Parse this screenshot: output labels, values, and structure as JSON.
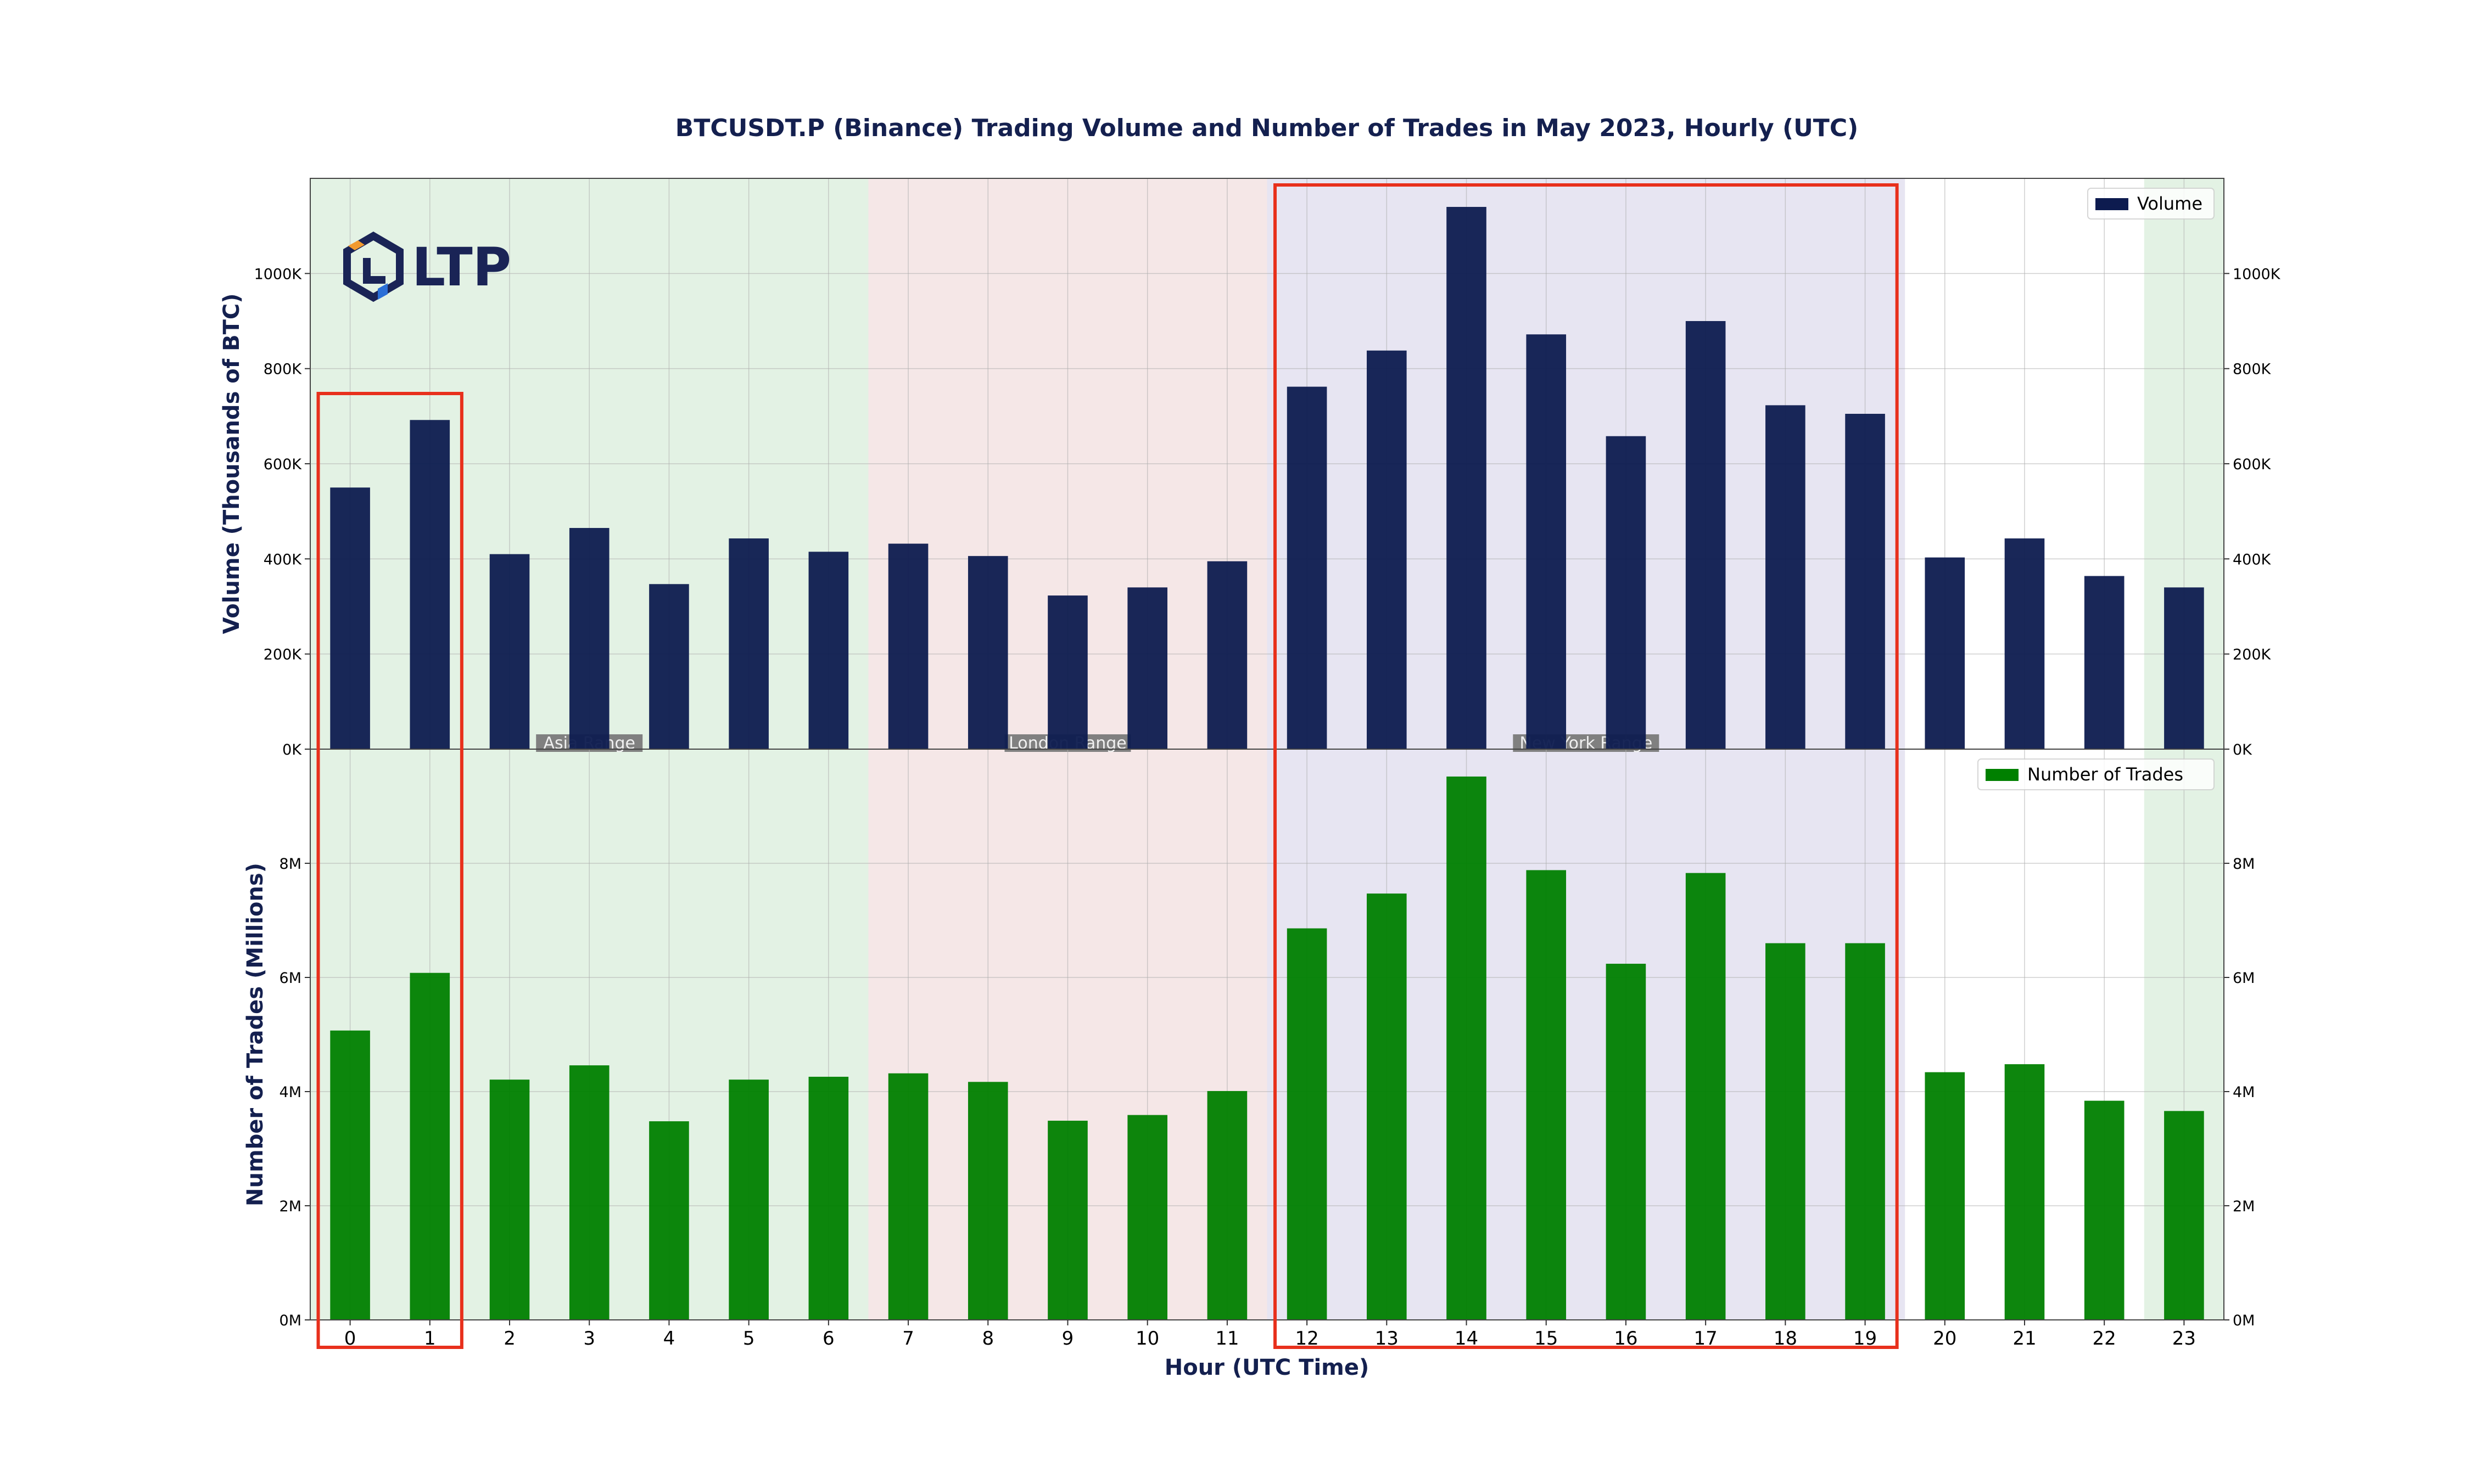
{
  "logo": {
    "text": "LTP"
  },
  "chart_data": {
    "type": "bar",
    "title": "BTCUSDT.P (Binance) Trading Volume and Number of Trades in May 2023, Hourly (UTC)",
    "xlabel": "Hour (UTC Time)",
    "categories": [
      "0",
      "1",
      "2",
      "3",
      "4",
      "5",
      "6",
      "7",
      "8",
      "9",
      "10",
      "11",
      "12",
      "13",
      "14",
      "15",
      "16",
      "17",
      "18",
      "19",
      "20",
      "21",
      "22",
      "23"
    ],
    "sessions": [
      {
        "label": "Asia Range",
        "start": 0,
        "end": 7,
        "color": "#c8e6c9"
      },
      {
        "label": "London Range",
        "start": 7,
        "end": 12,
        "color": "#ecd0d0"
      },
      {
        "label": "New York Range",
        "start": 12,
        "end": 20,
        "color": "#cfcbe6"
      },
      {
        "label": "",
        "start": 23,
        "end": 24,
        "color": "#c8e6c9"
      }
    ],
    "highlights": [
      {
        "start": 0,
        "end": 1
      },
      {
        "start": 12,
        "end": 19
      }
    ],
    "panels": [
      {
        "ylabel": "Volume (Thousands of BTC)",
        "legend": "Volume",
        "color": "#0d1b4f",
        "ylim": [
          0,
          1200
        ],
        "tick_values": [
          0,
          200,
          400,
          600,
          800,
          1000
        ],
        "tick_labels": [
          "0K",
          "200K",
          "400K",
          "600K",
          "800K",
          "1000K"
        ],
        "series": [
          {
            "name": "Volume",
            "values": [
              550,
              692,
              410,
              465,
              347,
              443,
              415,
              432,
              406,
              323,
              340,
              395,
              762,
              838,
              1140,
              872,
              658,
              900,
              723,
              705,
              403,
              443,
              364,
              340
            ]
          }
        ]
      },
      {
        "ylabel": "Number of Trades (Millions)",
        "legend": "Number of Trades",
        "color": "#008000",
        "ylim": [
          0,
          10
        ],
        "tick_values": [
          0,
          2,
          4,
          6,
          8
        ],
        "tick_labels": [
          "0M",
          "2M",
          "4M",
          "6M",
          "8M"
        ],
        "series": [
          {
            "name": "Number of Trades",
            "values": [
              5.07,
              6.08,
              4.21,
              4.46,
              3.48,
              4.21,
              4.26,
              4.32,
              4.17,
              3.49,
              3.59,
              4.01,
              6.86,
              7.47,
              9.52,
              7.88,
              6.24,
              7.83,
              6.6,
              6.6,
              4.34,
              4.48,
              3.84,
              3.66
            ]
          }
        ]
      }
    ],
    "grid": true,
    "legend_position": "top-right"
  }
}
